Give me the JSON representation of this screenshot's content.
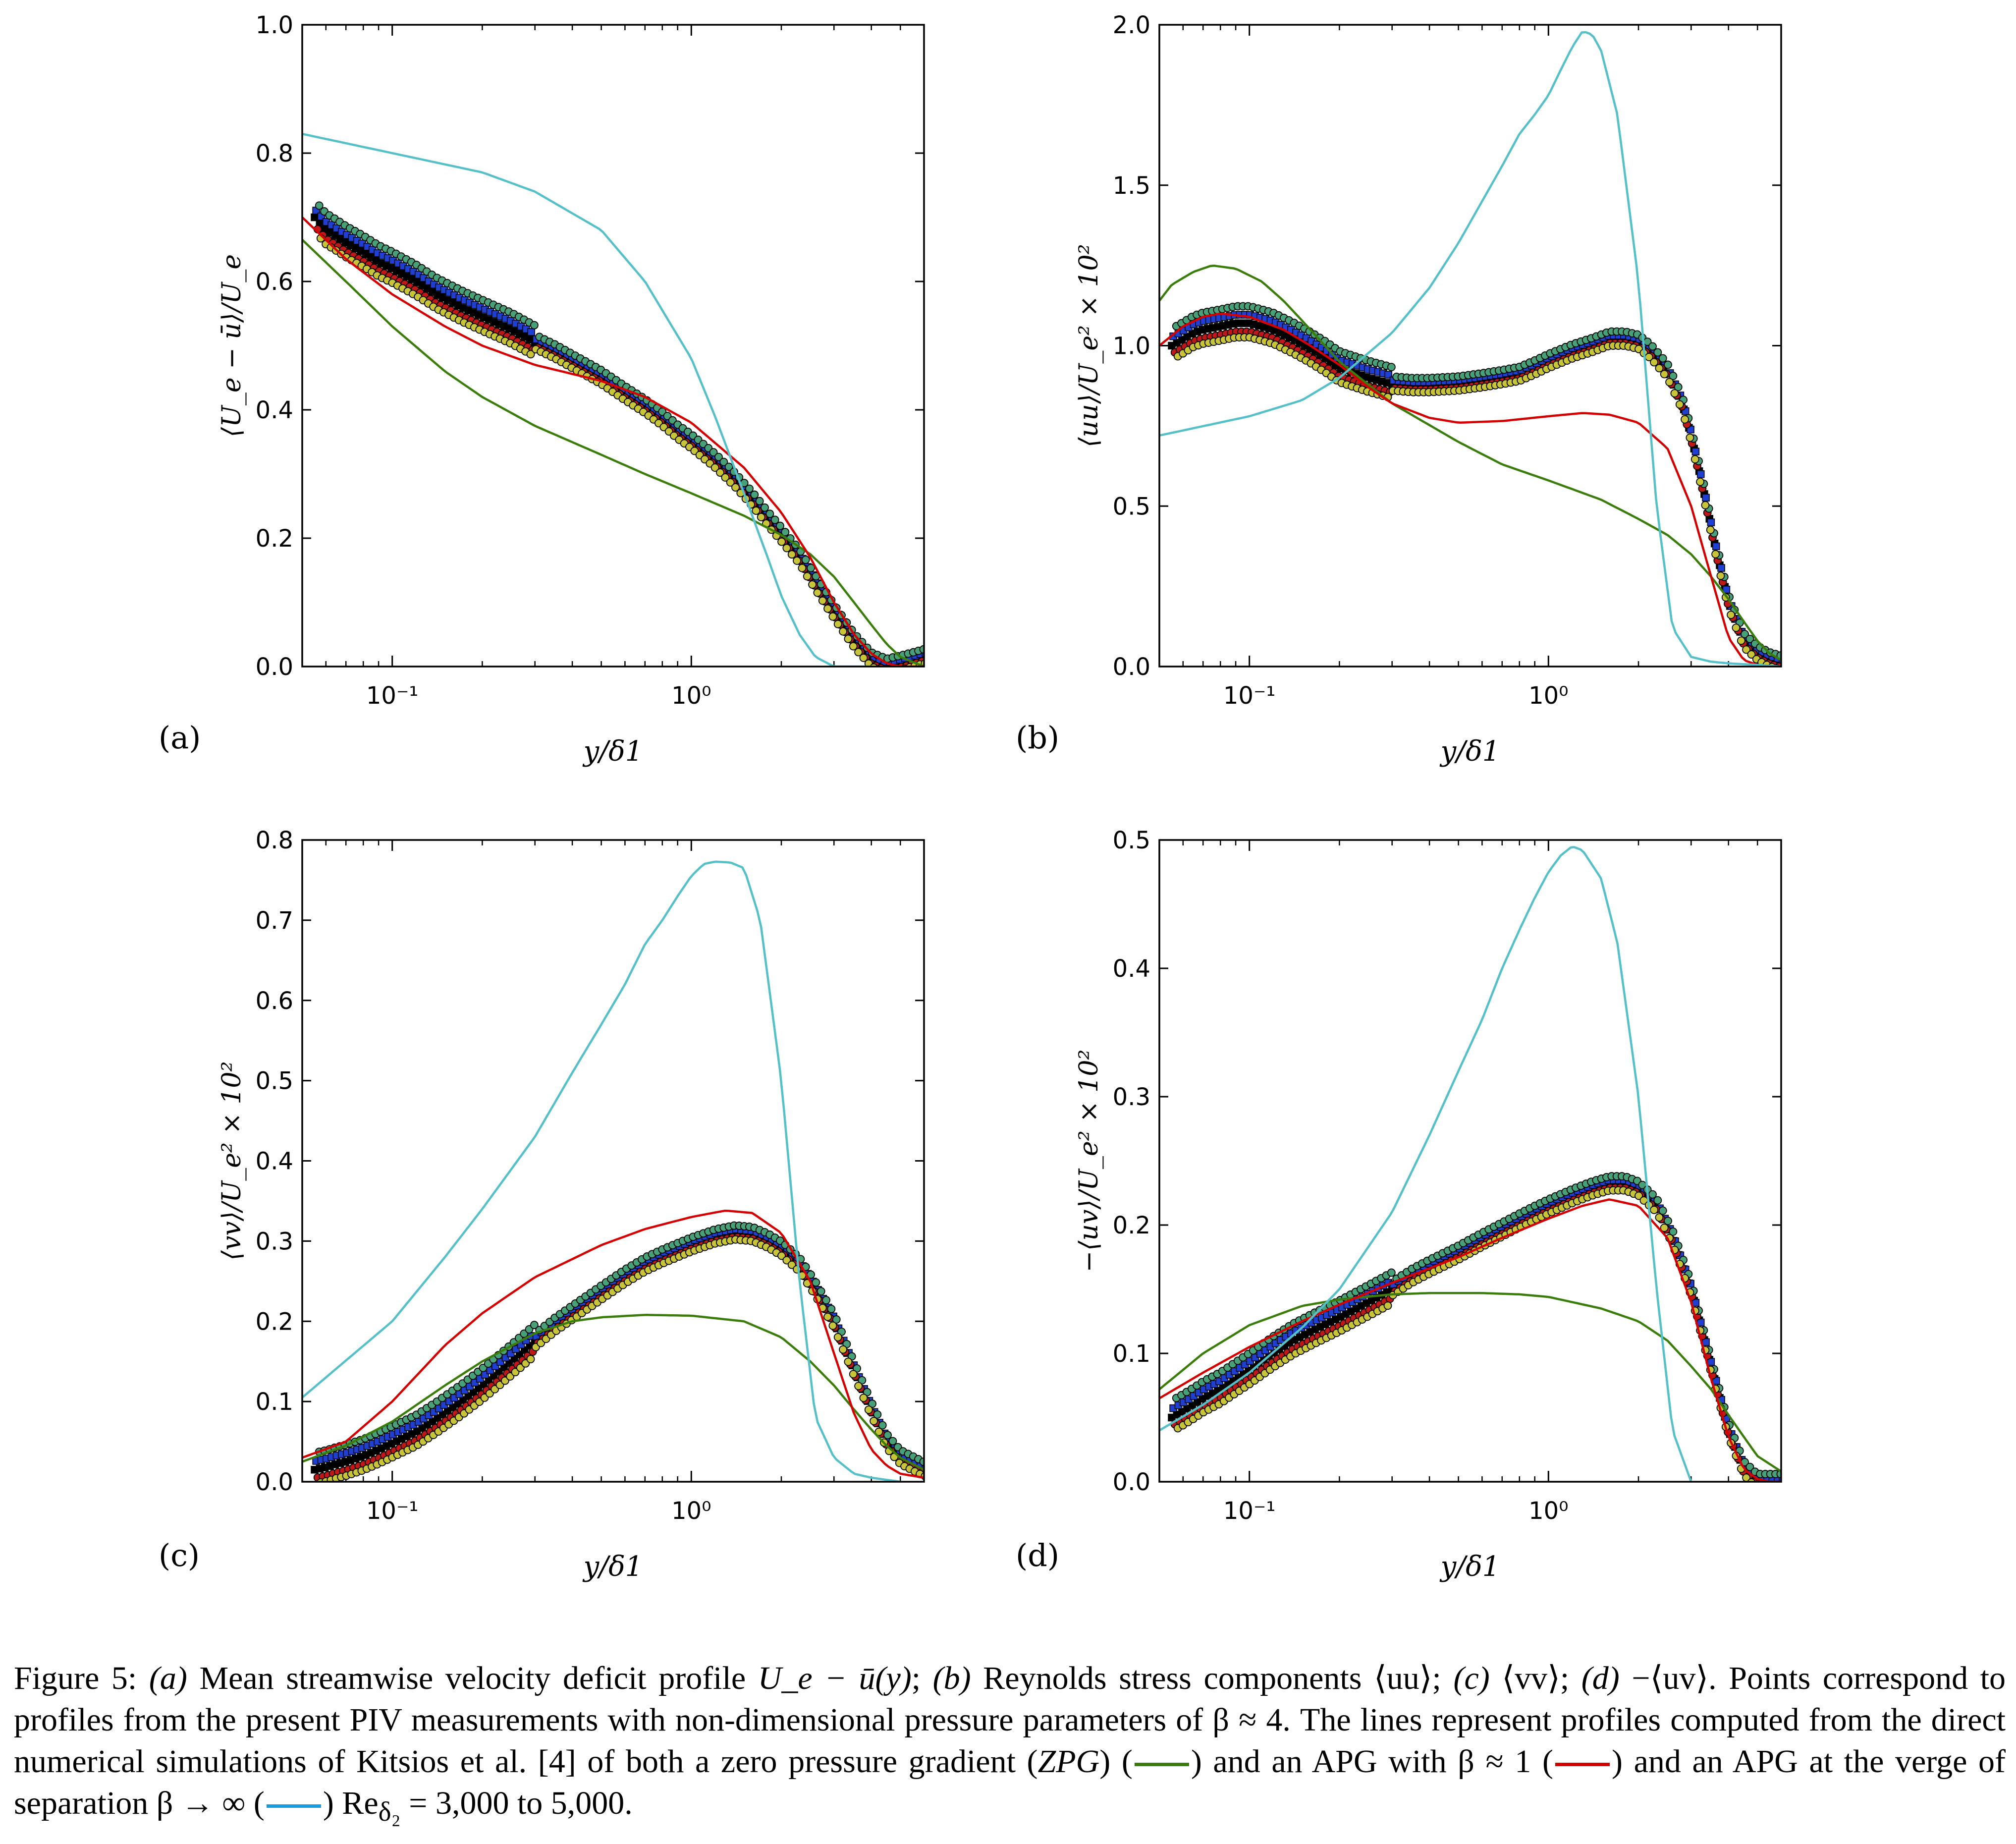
{
  "colors": {
    "zpg": "#3a7d0a",
    "apg1": "#d40000",
    "apginf": "#55c0c8",
    "pts": [
      "#000000",
      "#1f3fd0",
      "#c01818",
      "#48a078",
      "#c8c43a"
    ]
  },
  "chart_data": [
    {
      "id": "a",
      "type": "line",
      "panel_label": "(a)",
      "ylabel": "⟨U_e − ū⟩/U_e",
      "xlabel": "y/δ1",
      "xscale": "log",
      "xlim": [
        0.05,
        6.0
      ],
      "ylim": [
        0,
        1.0
      ],
      "yticks": [
        "0.0",
        "0.2",
        "0.4",
        "0.6",
        "0.8",
        "1.0"
      ],
      "xticks": [
        "10⁻¹",
        "10⁰"
      ],
      "series": [
        {
          "name": "ZPG",
          "x": [
            0.05,
            0.07,
            0.1,
            0.15,
            0.2,
            0.3,
            0.5,
            0.7,
            1.0,
            1.5,
            2.0,
            2.5,
            3.0,
            3.5,
            4.0,
            4.5,
            5.0,
            6.0
          ],
          "y": [
            0.665,
            0.6,
            0.53,
            0.46,
            0.42,
            0.375,
            0.33,
            0.3,
            0.27,
            0.235,
            0.205,
            0.175,
            0.14,
            0.1,
            0.065,
            0.035,
            0.015,
            0.0
          ]
        },
        {
          "name": "APG beta~1",
          "x": [
            0.05,
            0.07,
            0.1,
            0.15,
            0.2,
            0.3,
            0.5,
            0.7,
            1.0,
            1.5,
            2.0,
            2.5,
            3.0,
            3.5,
            4.0,
            4.5,
            5.0,
            6.0
          ],
          "y": [
            0.7,
            0.635,
            0.58,
            0.53,
            0.5,
            0.47,
            0.445,
            0.42,
            0.38,
            0.31,
            0.24,
            0.17,
            0.1,
            0.05,
            0.02,
            0.005,
            0.0,
            0.0
          ]
        },
        {
          "name": "APG beta->inf",
          "x": [
            0.05,
            0.1,
            0.2,
            0.3,
            0.5,
            0.7,
            1.0,
            1.2,
            1.5,
            1.8,
            2.0,
            2.3,
            2.6,
            3.0,
            3.5,
            4.0
          ],
          "y": [
            0.83,
            0.8,
            0.77,
            0.74,
            0.68,
            0.6,
            0.48,
            0.39,
            0.27,
            0.17,
            0.11,
            0.05,
            0.015,
            0.0,
            0.0,
            0.0
          ]
        },
        {
          "name": "PIV",
          "style": "points",
          "x": [
            0.055,
            0.06,
            0.065,
            0.07,
            0.08,
            0.09,
            0.1,
            0.12,
            0.14,
            0.17,
            0.2,
            0.25,
            0.3,
            0.35,
            0.4,
            0.5,
            0.6,
            0.7,
            0.8,
            0.9,
            1.0,
            1.2,
            1.4,
            1.6,
            1.8,
            2.0,
            2.3,
            2.6,
            3.0,
            3.5,
            4.0,
            4.5,
            5.0,
            5.5,
            6.0
          ],
          "y": [
            0.7,
            0.68,
            0.67,
            0.66,
            0.645,
            0.63,
            0.62,
            0.6,
            0.58,
            0.56,
            0.545,
            0.525,
            0.505,
            0.49,
            0.475,
            0.45,
            0.425,
            0.405,
            0.385,
            0.365,
            0.35,
            0.32,
            0.29,
            0.26,
            0.23,
            0.205,
            0.17,
            0.13,
            0.085,
            0.04,
            0.01,
            0.0,
            0.005,
            0.01,
            0.015
          ]
        }
      ]
    },
    {
      "id": "b",
      "type": "line",
      "panel_label": "(b)",
      "ylabel": "⟨uu⟩/U_e² × 10²",
      "xlabel": "y/δ1",
      "xscale": "log",
      "xlim": [
        0.05,
        6.0
      ],
      "ylim": [
        0,
        2.0
      ],
      "yticks": [
        "0.0",
        "0.5",
        "1.0",
        "1.5",
        "2.0"
      ],
      "xticks": [
        "10⁻¹",
        "10⁰"
      ],
      "series": [
        {
          "name": "ZPG",
          "x": [
            0.05,
            0.055,
            0.065,
            0.075,
            0.09,
            0.11,
            0.13,
            0.16,
            0.2,
            0.3,
            0.5,
            0.7,
            1.0,
            1.5,
            2.0,
            2.5,
            3.0,
            3.5,
            4.0,
            4.5,
            5.0,
            5.5,
            6.0
          ],
          "y": [
            1.14,
            1.19,
            1.23,
            1.25,
            1.24,
            1.2,
            1.14,
            1.05,
            0.95,
            0.82,
            0.7,
            0.63,
            0.58,
            0.52,
            0.46,
            0.41,
            0.35,
            0.28,
            0.21,
            0.14,
            0.08,
            0.04,
            0.02
          ]
        },
        {
          "name": "APG beta~1",
          "x": [
            0.05,
            0.06,
            0.07,
            0.08,
            0.1,
            0.13,
            0.16,
            0.2,
            0.25,
            0.3,
            0.4,
            0.5,
            0.7,
            1.0,
            1.3,
            1.6,
            2.0,
            2.5,
            3.0,
            3.5,
            4.0,
            4.5,
            5.0,
            6.0
          ],
          "y": [
            1.0,
            1.06,
            1.09,
            1.1,
            1.09,
            1.05,
            1.0,
            0.94,
            0.87,
            0.82,
            0.775,
            0.76,
            0.765,
            0.78,
            0.79,
            0.785,
            0.76,
            0.68,
            0.5,
            0.28,
            0.09,
            0.02,
            0.005,
            0.0
          ]
        },
        {
          "name": "APG beta->inf",
          "x": [
            0.05,
            0.1,
            0.15,
            0.2,
            0.3,
            0.4,
            0.5,
            0.6,
            0.7,
            0.8,
            0.9,
            1.0,
            1.1,
            1.2,
            1.3,
            1.4,
            1.5,
            1.7,
            2.0,
            2.3,
            2.6,
            3.0,
            3.5,
            4.0,
            5.0,
            6.0
          ],
          "y": [
            0.72,
            0.78,
            0.83,
            0.9,
            1.04,
            1.18,
            1.32,
            1.45,
            1.56,
            1.66,
            1.72,
            1.78,
            1.86,
            1.93,
            1.98,
            1.97,
            1.92,
            1.72,
            1.2,
            0.5,
            0.12,
            0.03,
            0.015,
            0.01,
            0.005,
            0.0
          ]
        },
        {
          "name": "PIV",
          "style": "points",
          "x": [
            0.055,
            0.06,
            0.065,
            0.07,
            0.08,
            0.09,
            0.1,
            0.11,
            0.12,
            0.14,
            0.16,
            0.18,
            0.2,
            0.25,
            0.3,
            0.35,
            0.4,
            0.5,
            0.6,
            0.7,
            0.8,
            0.9,
            1.0,
            1.2,
            1.4,
            1.6,
            1.8,
            2.0,
            2.2,
            2.5,
            2.8,
            3.0,
            3.3,
            3.6,
            4.0,
            4.5,
            5.0,
            5.5,
            6.0
          ],
          "y": [
            1.0,
            1.02,
            1.04,
            1.05,
            1.06,
            1.07,
            1.07,
            1.06,
            1.05,
            1.02,
            0.99,
            0.96,
            0.93,
            0.9,
            0.88,
            0.875,
            0.875,
            0.88,
            0.89,
            0.9,
            0.91,
            0.93,
            0.95,
            0.98,
            1.0,
            1.02,
            1.02,
            1.01,
            0.98,
            0.92,
            0.82,
            0.72,
            0.55,
            0.38,
            0.2,
            0.08,
            0.04,
            0.02,
            0.01
          ]
        }
      ]
    },
    {
      "id": "c",
      "type": "line",
      "panel_label": "(c)",
      "ylabel": "⟨vv⟩/U_e² × 10²",
      "xlabel": "y/δ1",
      "xscale": "log",
      "xlim": [
        0.05,
        6.0
      ],
      "ylim": [
        0,
        0.8
      ],
      "yticks": [
        "0.0",
        "0.1",
        "0.2",
        "0.3",
        "0.4",
        "0.5",
        "0.6",
        "0.7",
        "0.8"
      ],
      "xticks": [
        "10⁻¹",
        "10⁰"
      ],
      "series": [
        {
          "name": "ZPG",
          "x": [
            0.05,
            0.07,
            0.1,
            0.15,
            0.2,
            0.3,
            0.4,
            0.5,
            0.7,
            1.0,
            1.5,
            2.0,
            2.5,
            3.0,
            3.5,
            4.0,
            4.5,
            5.0,
            6.0
          ],
          "y": [
            0.025,
            0.045,
            0.075,
            0.12,
            0.15,
            0.185,
            0.2,
            0.205,
            0.208,
            0.207,
            0.2,
            0.18,
            0.15,
            0.12,
            0.09,
            0.065,
            0.045,
            0.03,
            0.015
          ]
        },
        {
          "name": "APG beta~1",
          "x": [
            0.05,
            0.07,
            0.1,
            0.15,
            0.2,
            0.3,
            0.5,
            0.7,
            1.0,
            1.3,
            1.6,
            2.0,
            2.5,
            3.0,
            3.5,
            4.0,
            4.5,
            5.0,
            6.0
          ],
          "y": [
            0.03,
            0.05,
            0.1,
            0.17,
            0.21,
            0.255,
            0.295,
            0.315,
            0.33,
            0.338,
            0.335,
            0.31,
            0.25,
            0.16,
            0.085,
            0.04,
            0.02,
            0.01,
            0.005
          ]
        },
        {
          "name": "APG beta->inf",
          "x": [
            0.05,
            0.1,
            0.15,
            0.2,
            0.3,
            0.4,
            0.5,
            0.6,
            0.7,
            0.8,
            0.9,
            1.0,
            1.1,
            1.2,
            1.35,
            1.5,
            1.7,
            2.0,
            2.3,
            2.6,
            3.0,
            3.5,
            4.0,
            5.0
          ],
          "y": [
            0.105,
            0.2,
            0.28,
            0.34,
            0.43,
            0.51,
            0.57,
            0.62,
            0.67,
            0.7,
            0.73,
            0.755,
            0.77,
            0.773,
            0.772,
            0.765,
            0.7,
            0.5,
            0.25,
            0.08,
            0.03,
            0.01,
            0.005,
            0.0
          ]
        },
        {
          "name": "PIV",
          "style": "points",
          "x": [
            0.055,
            0.06,
            0.065,
            0.07,
            0.08,
            0.09,
            0.1,
            0.12,
            0.14,
            0.17,
            0.2,
            0.25,
            0.3,
            0.35,
            0.4,
            0.5,
            0.6,
            0.7,
            0.8,
            1.0,
            1.2,
            1.4,
            1.6,
            1.8,
            2.0,
            2.3,
            2.6,
            3.0,
            3.5,
            4.0,
            4.5,
            5.0,
            6.0
          ],
          "y": [
            0.015,
            0.018,
            0.022,
            0.025,
            0.032,
            0.04,
            0.048,
            0.062,
            0.078,
            0.1,
            0.12,
            0.15,
            0.175,
            0.195,
            0.21,
            0.235,
            0.255,
            0.27,
            0.28,
            0.295,
            0.305,
            0.31,
            0.308,
            0.3,
            0.29,
            0.27,
            0.24,
            0.2,
            0.14,
            0.09,
            0.05,
            0.03,
            0.015
          ]
        }
      ]
    },
    {
      "id": "d",
      "type": "line",
      "panel_label": "(d)",
      "ylabel": "−⟨uv⟩/U_e² × 10²",
      "xlabel": "y/δ1",
      "xscale": "log",
      "xlim": [
        0.05,
        6.0
      ],
      "ylim": [
        0,
        0.5
      ],
      "yticks": [
        "0.0",
        "0.1",
        "0.2",
        "0.3",
        "0.4",
        "0.5"
      ],
      "xticks": [
        "10⁻¹",
        "10⁰"
      ],
      "series": [
        {
          "name": "ZPG",
          "x": [
            0.05,
            0.07,
            0.1,
            0.15,
            0.2,
            0.3,
            0.4,
            0.6,
            0.8,
            1.0,
            1.5,
            2.0,
            2.5,
            3.0,
            3.5,
            4.0,
            4.5,
            5.0,
            6.0
          ],
          "y": [
            0.072,
            0.1,
            0.122,
            0.137,
            0.142,
            0.146,
            0.147,
            0.147,
            0.146,
            0.144,
            0.135,
            0.125,
            0.11,
            0.09,
            0.072,
            0.052,
            0.035,
            0.02,
            0.008
          ]
        },
        {
          "name": "APG beta~1",
          "x": [
            0.05,
            0.07,
            0.1,
            0.15,
            0.2,
            0.3,
            0.5,
            0.7,
            1.0,
            1.3,
            1.6,
            2.0,
            2.5,
            3.0,
            3.5,
            4.0,
            4.5,
            5.0,
            5.5,
            6.0
          ],
          "y": [
            0.065,
            0.085,
            0.105,
            0.125,
            0.138,
            0.155,
            0.175,
            0.19,
            0.205,
            0.215,
            0.22,
            0.215,
            0.19,
            0.14,
            0.08,
            0.035,
            0.01,
            0.002,
            0.0,
            0.0
          ]
        },
        {
          "name": "APG beta->inf",
          "x": [
            0.05,
            0.07,
            0.1,
            0.15,
            0.2,
            0.3,
            0.4,
            0.5,
            0.6,
            0.7,
            0.8,
            0.9,
            1.0,
            1.1,
            1.2,
            1.3,
            1.5,
            1.7,
            2.0,
            2.3,
            2.6,
            3.0
          ],
          "y": [
            0.04,
            0.06,
            0.085,
            0.12,
            0.15,
            0.21,
            0.27,
            0.32,
            0.36,
            0.4,
            0.43,
            0.455,
            0.475,
            0.488,
            0.495,
            0.492,
            0.47,
            0.42,
            0.3,
            0.15,
            0.04,
            0.0
          ]
        },
        {
          "name": "PIV",
          "style": "points",
          "x": [
            0.055,
            0.06,
            0.065,
            0.07,
            0.08,
            0.09,
            0.1,
            0.12,
            0.14,
            0.17,
            0.2,
            0.25,
            0.3,
            0.35,
            0.4,
            0.5,
            0.6,
            0.7,
            0.8,
            0.9,
            1.0,
            1.2,
            1.4,
            1.6,
            1.8,
            2.0,
            2.3,
            2.6,
            3.0,
            3.5,
            4.0,
            4.5,
            5.0,
            5.5,
            6.0
          ],
          "y": [
            0.05,
            0.055,
            0.06,
            0.065,
            0.072,
            0.08,
            0.087,
            0.1,
            0.11,
            0.12,
            0.128,
            0.14,
            0.15,
            0.16,
            0.167,
            0.178,
            0.188,
            0.196,
            0.203,
            0.209,
            0.214,
            0.222,
            0.228,
            0.232,
            0.232,
            0.228,
            0.215,
            0.19,
            0.15,
            0.09,
            0.04,
            0.01,
            0.0,
            0.0,
            0.0
          ]
        }
      ]
    }
  ],
  "caption": {
    "fig": "Figure 5:",
    "a_label": "(a)",
    "a_text": "Mean streamwise velocity deficit profile",
    "a_expr": "U_e − ū(y)",
    "b_label": "(b)",
    "b_text": "Reynolds stress components",
    "b_expr": "⟨uu⟩",
    "c_label": "(c)",
    "c_expr": "⟨vv⟩",
    "d_label": "(d)",
    "d_expr": "−⟨uv⟩",
    "sentence2": "Points correspond to profiles from the present PIV measurements with non-dimensional pressure parameters of β ≈ 4.",
    "sentence3a": "The lines represent profiles computed from the direct numerical simulations of Kitsios et al. [4] of both a zero pressure gradient (",
    "zpg": "ZPG",
    "sentence3b": ") (",
    "sentence3c": ") and an APG with β ≈ 1 (",
    "sentence3d": ") and an APG at the verge of separation β → ∞ (",
    "sentence3e": ") Re",
    "re_sub": "δ₂",
    "sentence3f": " = 3,000 to 5,000."
  }
}
